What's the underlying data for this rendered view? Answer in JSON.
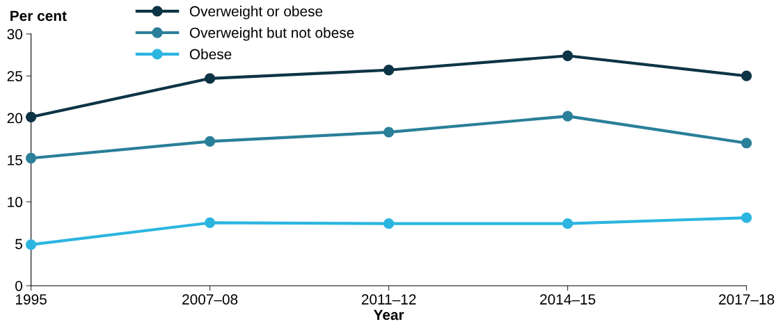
{
  "chart_data": {
    "type": "line",
    "xlabel": "Year",
    "ylabel": "Per cent",
    "categories": [
      "1995",
      "2007–08",
      "2011–12",
      "2014–15",
      "2017–18"
    ],
    "ylim": [
      0,
      30
    ],
    "yticks": [
      0,
      5,
      10,
      15,
      20,
      25,
      30
    ],
    "series": [
      {
        "name": "Overweight or obese",
        "color": "#0d3446",
        "values": [
          20.1,
          24.7,
          25.7,
          27.4,
          25.0
        ]
      },
      {
        "name": "Overweight but not obese",
        "color": "#2a7f99",
        "values": [
          15.2,
          17.2,
          18.3,
          20.2,
          17.0
        ]
      },
      {
        "name": "Obese",
        "color": "#2cb5e0",
        "values": [
          4.9,
          7.5,
          7.4,
          7.4,
          8.1
        ]
      }
    ],
    "marker": "circle",
    "line_style": "solid",
    "grid": false,
    "legend": "top left"
  }
}
